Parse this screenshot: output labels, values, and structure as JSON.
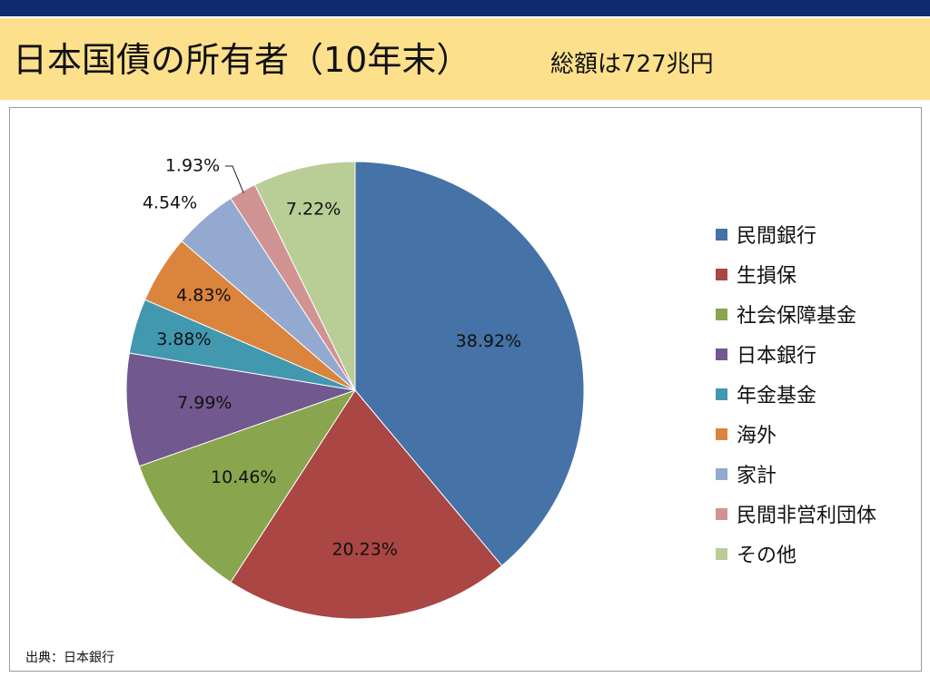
{
  "header": {
    "title": "日本国債の所有者（10年末）",
    "subtitle": "総額は727兆円"
  },
  "source": "出典：日本銀行",
  "chart_data": {
    "type": "pie",
    "title": "日本国債の所有者（10年末）",
    "legend_position": "right",
    "slices": [
      {
        "label": "民間銀行",
        "value": 38.92,
        "display": "38.92%",
        "color": "#4572a7"
      },
      {
        "label": "生損保",
        "value": 20.23,
        "display": "20.23%",
        "color": "#aa4643"
      },
      {
        "label": "社会保障基金",
        "value": 10.46,
        "display": "10.46%",
        "color": "#89a54e"
      },
      {
        "label": "日本銀行",
        "value": 7.99,
        "display": "7.99%",
        "color": "#71588f"
      },
      {
        "label": "年金基金",
        "value": 3.88,
        "display": "3.88%",
        "color": "#4198af"
      },
      {
        "label": "海外",
        "value": 4.83,
        "display": "4.83%",
        "color": "#db843d"
      },
      {
        "label": "家計",
        "value": 4.54,
        "display": "4.54%",
        "color": "#93a9cf"
      },
      {
        "label": "民間非営利団体",
        "value": 1.93,
        "display": "1.93%",
        "color": "#d19392"
      },
      {
        "label": "その他",
        "value": 7.22,
        "display": "7.22%",
        "color": "#b9cd96"
      }
    ]
  }
}
